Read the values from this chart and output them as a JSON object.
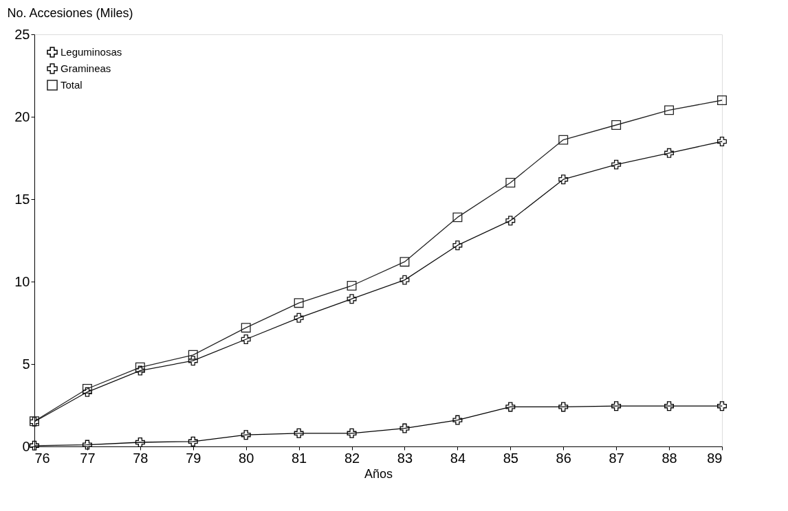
{
  "chart_data": {
    "type": "line",
    "ylabel": "No. Accesiones (Miles)",
    "xlabel": "Años",
    "x": [
      76,
      77,
      78,
      79,
      80,
      81,
      82,
      83,
      84,
      85,
      86,
      87,
      88,
      89
    ],
    "xlim": [
      76,
      89
    ],
    "xticks": [
      76,
      77,
      78,
      79,
      80,
      81,
      82,
      83,
      84,
      85,
      86,
      87,
      88,
      89
    ],
    "ylim": [
      0,
      25
    ],
    "yticks": [
      0,
      5,
      10,
      15,
      20,
      25
    ],
    "grid": false,
    "legend": "top left",
    "marker": "cross",
    "line_style": "solid",
    "series": [
      {
        "name": "Leguminosas",
        "color": "#000000",
        "values": [
          0.05,
          0.1,
          0.25,
          0.3,
          0.7,
          0.8,
          0.8,
          1.1,
          1.6,
          2.4,
          2.4,
          2.45,
          2.45,
          2.45
        ]
      },
      {
        "name": "Gramineas",
        "color": "#111111",
        "values": [
          1.5,
          3.3,
          4.6,
          5.2,
          6.5,
          7.8,
          8.95,
          10.1,
          12.2,
          13.7,
          16.2,
          17.1,
          17.8,
          18.5
        ]
      },
      {
        "name": "Total",
        "color": "#222222",
        "marker": "square",
        "values": [
          1.53,
          3.5,
          4.8,
          5.55,
          7.2,
          8.7,
          9.75,
          11.2,
          13.9,
          16.0,
          18.6,
          19.5,
          20.4,
          21.0
        ]
      }
    ]
  }
}
